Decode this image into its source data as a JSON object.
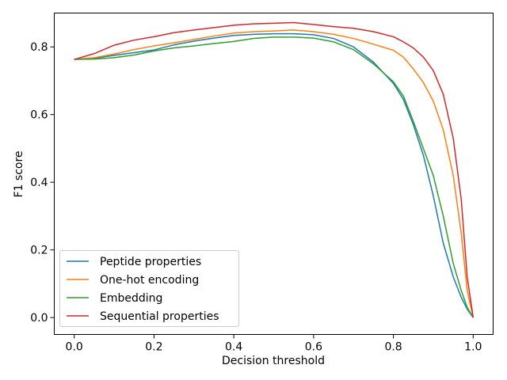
{
  "chart_data": {
    "type": "line",
    "title": "",
    "xlabel": "Decision threshold",
    "ylabel": "F1 score",
    "xlim": [
      -0.05,
      1.05
    ],
    "ylim": [
      -0.05,
      0.9
    ],
    "xticks": [
      0.0,
      0.2,
      0.4,
      0.6,
      0.8,
      1.0
    ],
    "xtick_labels": [
      "0.0",
      "0.2",
      "0.4",
      "0.6",
      "0.8",
      "1.0"
    ],
    "yticks": [
      0.0,
      0.2,
      0.4,
      0.6,
      0.8
    ],
    "ytick_labels": [
      "0.0",
      "0.2",
      "0.4",
      "0.6",
      "0.8"
    ],
    "grid": false,
    "legend_position": "bottom-left",
    "x": [
      0.0,
      0.05,
      0.1,
      0.15,
      0.2,
      0.25,
      0.3,
      0.35,
      0.4,
      0.45,
      0.5,
      0.55,
      0.6,
      0.65,
      0.7,
      0.75,
      0.8,
      0.825,
      0.85,
      0.875,
      0.9,
      0.925,
      0.95,
      0.97,
      0.985,
      1.0
    ],
    "series": [
      {
        "name": "Peptide properties",
        "color": "#1f77b4",
        "values": [
          0.763,
          0.766,
          0.775,
          0.783,
          0.791,
          0.806,
          0.817,
          0.826,
          0.834,
          0.837,
          0.839,
          0.839,
          0.836,
          0.825,
          0.8,
          0.755,
          0.692,
          0.645,
          0.57,
          0.48,
          0.36,
          0.22,
          0.12,
          0.06,
          0.025,
          0.0
        ]
      },
      {
        "name": "One-hot encoding",
        "color": "#ff7f0e",
        "values": [
          0.763,
          0.768,
          0.779,
          0.792,
          0.803,
          0.812,
          0.822,
          0.832,
          0.841,
          0.845,
          0.847,
          0.85,
          0.845,
          0.837,
          0.825,
          0.808,
          0.79,
          0.77,
          0.735,
          0.695,
          0.64,
          0.555,
          0.42,
          0.25,
          0.08,
          0.0
        ]
      },
      {
        "name": "Embedding",
        "color": "#2ca02c",
        "values": [
          0.763,
          0.764,
          0.768,
          0.776,
          0.788,
          0.797,
          0.803,
          0.81,
          0.816,
          0.825,
          0.829,
          0.829,
          0.826,
          0.815,
          0.792,
          0.75,
          0.697,
          0.655,
          0.58,
          0.5,
          0.42,
          0.3,
          0.16,
          0.08,
          0.03,
          0.0
        ]
      },
      {
        "name": "Sequential properties",
        "color": "#d62728",
        "values": [
          0.763,
          0.78,
          0.805,
          0.82,
          0.83,
          0.842,
          0.85,
          0.857,
          0.864,
          0.868,
          0.87,
          0.872,
          0.866,
          0.86,
          0.855,
          0.845,
          0.83,
          0.815,
          0.797,
          0.77,
          0.73,
          0.66,
          0.53,
          0.35,
          0.12,
          0.0
        ]
      }
    ]
  }
}
